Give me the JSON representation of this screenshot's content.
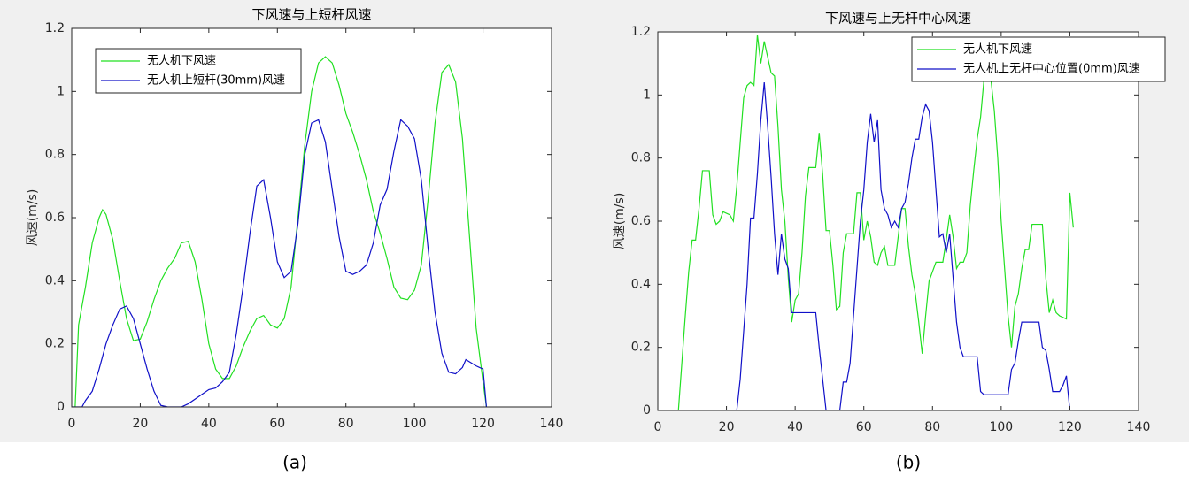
{
  "chart_data": [
    {
      "type": "line",
      "title": "下风速与上短杆风速",
      "ylabel": "风速(m/s)",
      "caption": "(a)",
      "xlim": [
        0,
        140
      ],
      "xticks": [
        0,
        20,
        40,
        60,
        80,
        100,
        120,
        140
      ],
      "ylim": [
        0,
        1.2
      ],
      "yticks": [
        0,
        0.2,
        0.4,
        0.6,
        0.8,
        1,
        1.2
      ],
      "legend": "upper left",
      "series": [
        {
          "name": "无人机下风速",
          "color": "#22e022",
          "x": [
            1,
            2,
            4,
            6,
            8,
            9,
            10,
            12,
            14,
            16,
            18,
            20,
            22,
            24,
            26,
            28,
            30,
            32,
            34,
            36,
            38,
            40,
            42,
            44,
            46,
            48,
            50,
            52,
            54,
            56,
            58,
            60,
            62,
            64,
            66,
            68,
            70,
            72,
            74,
            76,
            78,
            80,
            82,
            84,
            86,
            88,
            90,
            92,
            94,
            96,
            98,
            100,
            102,
            104,
            106,
            108,
            110,
            112,
            114,
            116,
            118,
            120,
            121
          ],
          "values": [
            0,
            0.26,
            0.38,
            0.52,
            0.6,
            0.625,
            0.61,
            0.53,
            0.4,
            0.28,
            0.21,
            0.215,
            0.27,
            0.34,
            0.4,
            0.44,
            0.47,
            0.52,
            0.525,
            0.46,
            0.34,
            0.2,
            0.12,
            0.09,
            0.09,
            0.13,
            0.19,
            0.24,
            0.28,
            0.29,
            0.26,
            0.25,
            0.28,
            0.38,
            0.6,
            0.83,
            1.0,
            1.09,
            1.11,
            1.09,
            1.02,
            0.93,
            0.87,
            0.8,
            0.72,
            0.62,
            0.55,
            0.47,
            0.38,
            0.345,
            0.34,
            0.37,
            0.45,
            0.66,
            0.9,
            1.06,
            1.085,
            1.03,
            0.85,
            0.55,
            0.25,
            0.08,
            0
          ]
        },
        {
          "name": "无人机上短杆(30mm)风速",
          "color": "#1010c8",
          "x": [
            0,
            3,
            4,
            6,
            8,
            10,
            12,
            14,
            16,
            18,
            20,
            22,
            24,
            26,
            28,
            32,
            34,
            36,
            38,
            40,
            42,
            44,
            46,
            48,
            50,
            52,
            54,
            56,
            58,
            60,
            62,
            64,
            66,
            68,
            70,
            72,
            74,
            76,
            78,
            80,
            82,
            84,
            86,
            88,
            90,
            92,
            94,
            96,
            98,
            100,
            102,
            104,
            106,
            108,
            110,
            112,
            114,
            115,
            118,
            120,
            121
          ],
          "values": [
            0,
            0,
            0.02,
            0.05,
            0.12,
            0.2,
            0.26,
            0.31,
            0.32,
            0.28,
            0.2,
            0.12,
            0.05,
            0.005,
            0,
            0,
            0.01,
            0.025,
            0.04,
            0.055,
            0.06,
            0.08,
            0.11,
            0.23,
            0.38,
            0.55,
            0.7,
            0.72,
            0.6,
            0.46,
            0.41,
            0.43,
            0.58,
            0.8,
            0.9,
            0.91,
            0.84,
            0.69,
            0.54,
            0.43,
            0.42,
            0.43,
            0.45,
            0.52,
            0.64,
            0.69,
            0.81,
            0.91,
            0.89,
            0.85,
            0.72,
            0.5,
            0.3,
            0.17,
            0.11,
            0.105,
            0.125,
            0.15,
            0.13,
            0.12,
            0
          ]
        }
      ]
    },
    {
      "type": "line",
      "title": "下风速与上无杆中心风速",
      "ylabel": "风速(m/s)",
      "caption": "(b)",
      "xlim": [
        0,
        140
      ],
      "xticks": [
        0,
        20,
        40,
        60,
        80,
        100,
        120,
        140
      ],
      "ylim": [
        0,
        1.2
      ],
      "yticks": [
        0,
        0.2,
        0.4,
        0.6,
        0.8,
        1,
        1.2
      ],
      "legend": "upper right",
      "series": [
        {
          "name": "无人机下风速",
          "color": "#22e022",
          "x": [
            0,
            6,
            8,
            9,
            10,
            11,
            12,
            13,
            15,
            16,
            17,
            18,
            19,
            21,
            22,
            23,
            24,
            25,
            26,
            27,
            28,
            29,
            30,
            31,
            32,
            33,
            34,
            35,
            36,
            37,
            38,
            39,
            40,
            41,
            42,
            43,
            44,
            46,
            47,
            48,
            49,
            50,
            51,
            52,
            53,
            54,
            55,
            57,
            58,
            59,
            60,
            61,
            62,
            63,
            64,
            65,
            66,
            67,
            69,
            70,
            71,
            72,
            73,
            74,
            75,
            76,
            77,
            78,
            79,
            80,
            81,
            83,
            84,
            85,
            86,
            87,
            88,
            89,
            90,
            91,
            92,
            93,
            94,
            95,
            97,
            98,
            99,
            100,
            101,
            102,
            103,
            104,
            105,
            106,
            107,
            108,
            109,
            112,
            113,
            114,
            115,
            116,
            117,
            119,
            120,
            121
          ],
          "values": [
            0,
            0,
            0.3,
            0.44,
            0.54,
            0.54,
            0.64,
            0.76,
            0.76,
            0.62,
            0.59,
            0.6,
            0.63,
            0.62,
            0.6,
            0.71,
            0.85,
            0.99,
            1.03,
            1.04,
            1.03,
            1.19,
            1.1,
            1.17,
            1.12,
            1.07,
            1.06,
            0.9,
            0.7,
            0.6,
            0.42,
            0.28,
            0.35,
            0.37,
            0.5,
            0.68,
            0.77,
            0.77,
            0.88,
            0.75,
            0.57,
            0.57,
            0.46,
            0.32,
            0.33,
            0.5,
            0.56,
            0.56,
            0.69,
            0.69,
            0.54,
            0.6,
            0.55,
            0.47,
            0.46,
            0.5,
            0.52,
            0.46,
            0.46,
            0.55,
            0.64,
            0.64,
            0.52,
            0.43,
            0.37,
            0.28,
            0.18,
            0.3,
            0.41,
            0.44,
            0.47,
            0.47,
            0.54,
            0.62,
            0.55,
            0.45,
            0.47,
            0.47,
            0.5,
            0.65,
            0.76,
            0.86,
            0.93,
            1.05,
            1.05,
            0.95,
            0.8,
            0.6,
            0.45,
            0.3,
            0.2,
            0.33,
            0.37,
            0.45,
            0.51,
            0.51,
            0.59,
            0.59,
            0.42,
            0.31,
            0.35,
            0.31,
            0.3,
            0.29,
            0.69,
            0.58
          ]
        },
        {
          "name": "无人机上无杆中心位置(0mm)风速",
          "color": "#1010c8",
          "x": [
            0,
            23,
            24,
            25,
            26,
            27,
            28,
            29,
            30,
            31,
            32,
            33,
            34,
            35,
            36,
            37,
            38,
            39,
            41,
            46,
            47,
            48,
            49,
            53,
            54,
            55,
            56,
            57,
            58,
            59,
            60,
            61,
            62,
            63,
            64,
            65,
            66,
            67,
            68,
            69,
            70,
            71,
            72,
            73,
            74,
            75,
            76,
            77,
            78,
            79,
            80,
            81,
            82,
            83,
            84,
            85,
            86,
            87,
            88,
            89,
            93,
            94,
            95,
            102,
            103,
            104,
            105,
            106,
            111,
            112,
            113,
            114,
            115,
            117,
            118,
            119,
            120
          ],
          "values": [
            0,
            0,
            0.1,
            0.25,
            0.4,
            0.61,
            0.61,
            0.75,
            0.92,
            1.04,
            0.9,
            0.74,
            0.56,
            0.43,
            0.56,
            0.48,
            0.45,
            0.31,
            0.31,
            0.31,
            0.2,
            0.1,
            0,
            0,
            0.09,
            0.09,
            0.15,
            0.3,
            0.45,
            0.6,
            0.7,
            0.85,
            0.94,
            0.85,
            0.92,
            0.7,
            0.64,
            0.62,
            0.58,
            0.6,
            0.58,
            0.64,
            0.66,
            0.72,
            0.8,
            0.86,
            0.86,
            0.93,
            0.97,
            0.95,
            0.85,
            0.7,
            0.55,
            0.56,
            0.5,
            0.56,
            0.42,
            0.28,
            0.2,
            0.17,
            0.17,
            0.06,
            0.05,
            0.05,
            0.13,
            0.15,
            0.22,
            0.28,
            0.28,
            0.2,
            0.19,
            0.13,
            0.06,
            0.06,
            0.08,
            0.11,
            0
          ]
        }
      ]
    }
  ]
}
